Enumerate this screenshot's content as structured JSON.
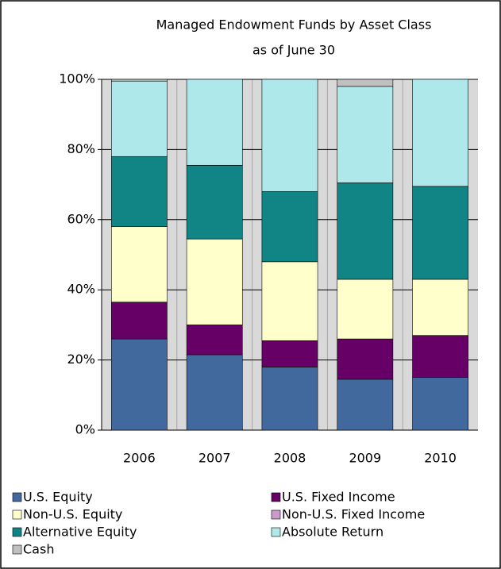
{
  "chart_data": {
    "type": "stacked_bar",
    "title": [
      "Managed Endowment Funds by Asset Class",
      "as of June 30"
    ],
    "categories": [
      "2006",
      "2007",
      "2008",
      "2009",
      "2010"
    ],
    "series": [
      {
        "name": "U.S. Equity",
        "color": "#41699e",
        "values": [
          26,
          21.5,
          18,
          14.5,
          15
        ]
      },
      {
        "name": "U.S. Fixed Income",
        "color": "#660066",
        "values": [
          10.5,
          8.5,
          7.5,
          11.5,
          12
        ]
      },
      {
        "name": "Non-U.S. Equity",
        "color": "#ffffcc",
        "values": [
          21.5,
          24.5,
          22.5,
          17,
          16
        ]
      },
      {
        "name": "Non-U.S. Fixed Income",
        "color": "#cc99cc",
        "values": [
          0,
          0,
          0,
          0,
          0
        ]
      },
      {
        "name": "Alternative Equity",
        "color": "#118585",
        "values": [
          20,
          21,
          20,
          27.5,
          26.5
        ]
      },
      {
        "name": "Absolute Return",
        "color": "#aee8ea",
        "values": [
          21.5,
          24.5,
          32,
          27.5,
          30.5
        ]
      },
      {
        "name": "Cash",
        "color": "#c0c0c0",
        "values": [
          0.5,
          0,
          0,
          2,
          0
        ]
      }
    ],
    "ylim": [
      0,
      100
    ],
    "yticks": [
      {
        "value": 0,
        "label": "0%"
      },
      {
        "value": 20,
        "label": "20%"
      },
      {
        "value": 40,
        "label": "40%"
      },
      {
        "value": 60,
        "label": "60%"
      },
      {
        "value": 80,
        "label": "80%"
      },
      {
        "value": 100,
        "label": "100%"
      }
    ],
    "grid": true
  }
}
